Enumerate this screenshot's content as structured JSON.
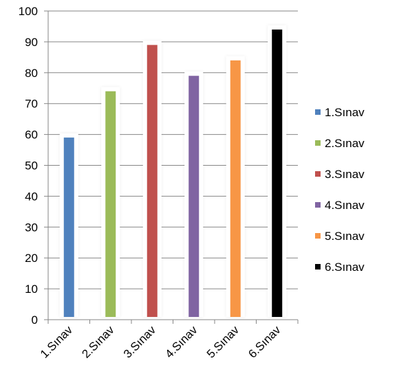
{
  "chart_data": {
    "type": "bar",
    "categories": [
      "1.Sınav",
      "2.Sınav",
      "3.Sınav",
      "4.Sınav",
      "5.Sınav",
      "6.Sınav"
    ],
    "values": [
      59,
      74,
      89,
      79,
      84,
      94
    ],
    "colors": [
      "#4f81bd",
      "#9bbb59",
      "#c0504d",
      "#8064a2",
      "#f79646",
      "#000000"
    ],
    "ylim": [
      0,
      100
    ],
    "yticks": [
      "0",
      "10",
      "20",
      "30",
      "40",
      "50",
      "60",
      "70",
      "80",
      "90",
      "100"
    ],
    "grid": true,
    "legend": {
      "position": "right",
      "entries": [
        "1.Sınav",
        "2.Sınav",
        "3.Sınav",
        "4.Sınav",
        "5.Sınav",
        "6.Sınav"
      ]
    },
    "title": "",
    "xlabel": "",
    "ylabel": ""
  }
}
